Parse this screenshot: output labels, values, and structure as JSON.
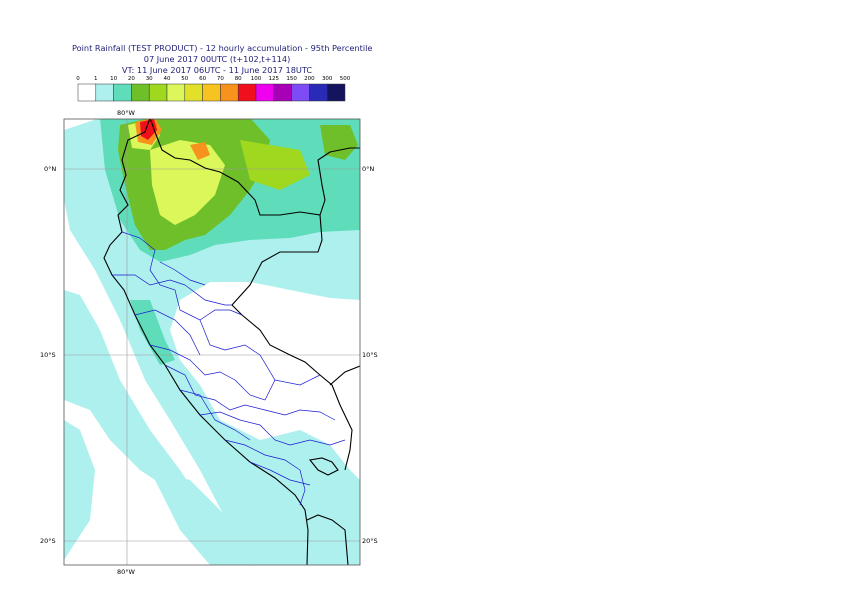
{
  "title": {
    "line1": "Point Rainfall (TEST PRODUCT) - 12 hourly accumulation - 95th Percentile",
    "line2": "07 June 2017 00UTC (t+102,t+114)",
    "line3": "VT: 11 June 2017 06UTC - 11 June 2017 18UTC"
  },
  "legend": {
    "thresholds": [
      "0",
      "1",
      "10",
      "20",
      "30",
      "40",
      "50",
      "60",
      "70",
      "80",
      "100",
      "125",
      "150",
      "200",
      "300",
      "500"
    ],
    "colors": [
      "#ffffff",
      "#aef0ee",
      "#5fdcb9",
      "#6fbf2a",
      "#9fd81e",
      "#dcf75a",
      "#e1e12a",
      "#f6c320",
      "#f7921c",
      "#f0101c",
      "#ef00ef",
      "#a700b7",
      "#7d4cf5",
      "#2a2ab8",
      "#14145e"
    ]
  },
  "map": {
    "lon_labels": [
      "80°W",
      "80°W"
    ],
    "lat_labels": [
      "0°N",
      "10°S",
      "20°S"
    ],
    "lat_labels_right": [
      "0°N",
      "10°S",
      "20°S"
    ],
    "colors": {
      "light": "#aef0ee",
      "teal": "#5fdcb9",
      "green": "#6fbf2a",
      "lime": "#9fd81e",
      "yellow": "#dcf75a",
      "orange": "#f7921c",
      "red": "#f0101c",
      "coast": "#000000",
      "admin": "#1a1ad0",
      "grid": "#9a9a9a"
    }
  }
}
